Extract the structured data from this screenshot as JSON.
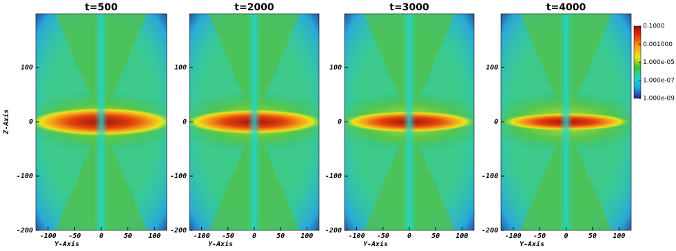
{
  "chart_data": [
    {
      "type": "heatmap",
      "title": "t=500",
      "xlabel": "Y-Axis",
      "ylabel": "Z-Axis",
      "xlim": [
        -123,
        123
      ],
      "xticks": [
        -100,
        -50,
        0,
        50,
        100
      ],
      "ylim": [
        -200,
        199
      ],
      "yticks": [
        -200,
        -100,
        0,
        100
      ]
    },
    {
      "type": "heatmap",
      "title": "t=2000",
      "xlabel": "Y-Axis",
      "xlim": [
        -123,
        123
      ],
      "xticks": [
        -100,
        -50,
        0,
        50,
        100
      ],
      "ylim": [
        -200,
        199
      ],
      "yticks": [
        -200,
        -100,
        0,
        100
      ]
    },
    {
      "type": "heatmap",
      "title": "t=3000",
      "xlabel": "Y-Axis",
      "xlim": [
        -123,
        123
      ],
      "xticks": [
        -100,
        -50,
        0,
        50,
        100
      ],
      "ylim": [
        -200,
        199
      ],
      "yticks": [
        -200,
        -100,
        0,
        100
      ]
    },
    {
      "type": "heatmap",
      "title": "t=4000",
      "xlabel": "Y-Axis",
      "xlim": [
        -123,
        123
      ],
      "xticks": [
        -100,
        -50,
        0,
        50,
        100
      ],
      "ylim": [
        -200,
        199
      ],
      "yticks": [
        -200,
        -100,
        0,
        100
      ]
    },
    {
      "type": "colorbar",
      "log_scale": true,
      "lim": [
        1e-09,
        0.1
      ],
      "ticks": [
        {
          "value": 0.1,
          "label": "0.1000"
        },
        {
          "value": 0.001,
          "label": "0.001000"
        },
        {
          "value": 1e-05,
          "label": "1.000e-05"
        },
        {
          "value": 1e-07,
          "label": "1.000e-07"
        },
        {
          "value": 1e-09,
          "label": "1.000e-09"
        }
      ],
      "colors": [
        "#9e0d0d",
        "#e8380a",
        "#f7a21a",
        "#e8e81c",
        "#3fbf3a",
        "#1fd6c4",
        "#22a3e0",
        "#2b1f8c"
      ]
    }
  ]
}
